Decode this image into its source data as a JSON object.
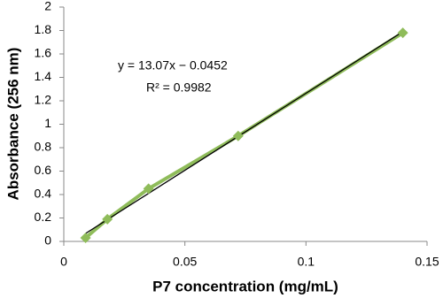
{
  "chart_data": {
    "type": "scatter",
    "xlabel": "P7 concentration (mg/mL)",
    "ylabel": "Absorbance (256 nm)",
    "annotations": [
      "y = 13.07x − 0.0452",
      "R² = 0.9982"
    ],
    "x": [
      0.009,
      0.018,
      0.035,
      0.072,
      0.14
    ],
    "series": [
      {
        "color": "#8fbc5a",
        "values": [
          0.03,
          0.19,
          0.45,
          0.9,
          1.78
        ]
      }
    ],
    "trendline_color": "#000000",
    "xlim": [
      0,
      0.15
    ],
    "xticks": [
      0,
      0.05,
      0.1,
      0.15
    ],
    "ylim": [
      0,
      2
    ],
    "yticks": [
      0,
      0.2,
      0.4,
      0.6,
      0.8,
      1,
      1.2,
      1.4,
      1.6,
      1.8,
      2
    ],
    "grid": false
  }
}
